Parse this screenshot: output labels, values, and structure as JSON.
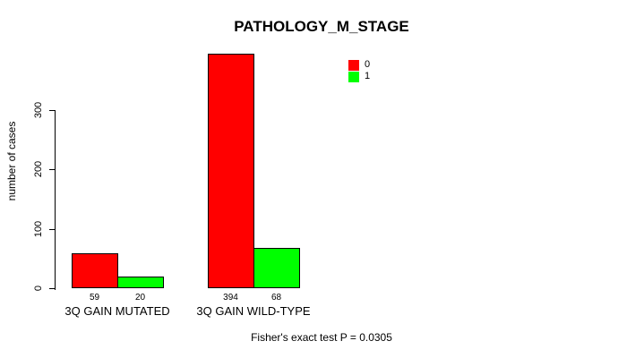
{
  "chart_data": {
    "type": "bar",
    "title": "PATHOLOGY_M_STAGE",
    "categories": [
      "3Q GAIN MUTATED",
      "3Q GAIN WILD-TYPE"
    ],
    "series": [
      {
        "name": "0",
        "color": "#ff0000",
        "values": [
          59,
          394
        ]
      },
      {
        "name": "1",
        "color": "#00ff00",
        "values": [
          20,
          68
        ]
      }
    ],
    "xlabel": "",
    "ylabel": "number of cases",
    "yticks": [
      0,
      100,
      200,
      300
    ],
    "ylim": [
      0,
      400
    ],
    "grid": false,
    "legend_position": "top-right",
    "bar_value_labels_shown": true,
    "footnote": "Fisher's exact test P = 0.0305"
  },
  "colors": {
    "background": "#ffffff",
    "axis": "#000000",
    "bar_border": "#000000",
    "series_0": "#ff0000",
    "series_1": "#00ff00"
  }
}
